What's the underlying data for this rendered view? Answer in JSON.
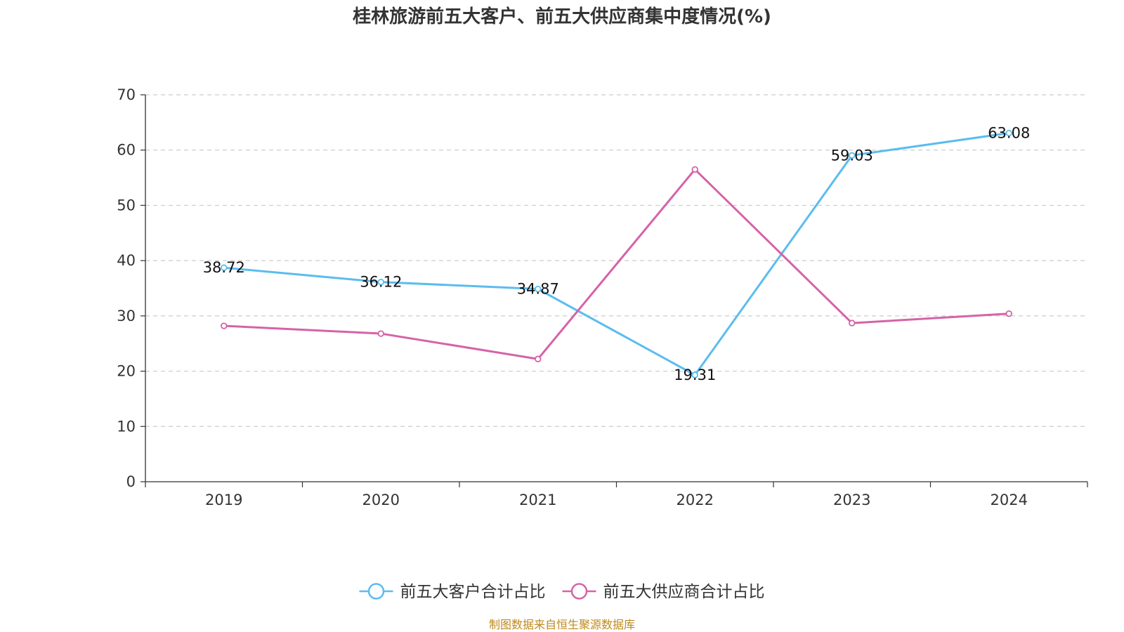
{
  "colors": {
    "customers": "#5bbcef",
    "suppliers": "#d563a8",
    "grid": "#cccccc",
    "axis": "#333333",
    "source": "#c0891a"
  },
  "chart_data": {
    "type": "line",
    "title": "桂林旅游前五大客户、前五大供应商集中度情况(%)",
    "categories": [
      "2019",
      "2020",
      "2021",
      "2022",
      "2023",
      "2024"
    ],
    "ylim": [
      0,
      70
    ],
    "yticks": [
      0,
      10,
      20,
      30,
      40,
      50,
      60,
      70
    ],
    "grid": true,
    "legend_position": "bottom",
    "series": [
      {
        "name": "前五大客户合计占比",
        "color_key": "customers",
        "values": [
          38.72,
          36.12,
          34.87,
          19.31,
          59.03,
          63.08
        ],
        "labels": [
          "38.72",
          "36.12",
          "34.87",
          "19.31",
          "59.03",
          "63.08"
        ],
        "show_labels": true
      },
      {
        "name": "前五大供应商合计占比",
        "color_key": "suppliers",
        "values": [
          28.2,
          26.8,
          22.2,
          56.5,
          28.7,
          30.4
        ],
        "show_labels": false
      }
    ],
    "source": "制图数据来自恒生聚源数据库"
  }
}
